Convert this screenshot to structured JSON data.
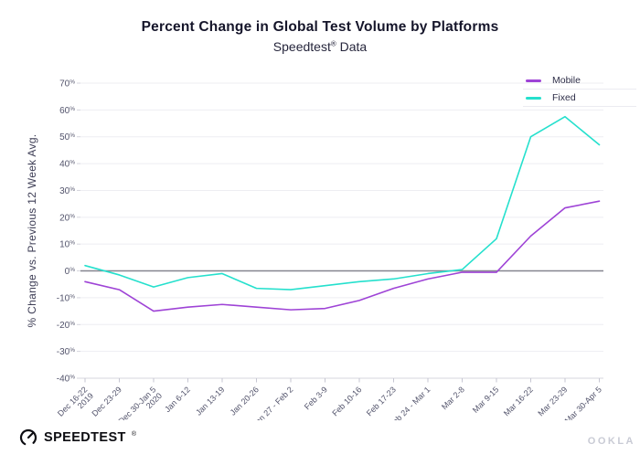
{
  "page": {
    "title": "Percent Change in Global Test Volume by Platforms",
    "subtitle_prefix": "Speedtest",
    "subtitle_mark": "®",
    "subtitle_suffix": " Data"
  },
  "legend": {
    "items": [
      {
        "label": "Mobile",
        "color": "#9e43d6"
      },
      {
        "label": "Fixed",
        "color": "#25e0cd"
      }
    ]
  },
  "footer": {
    "brand": "SPEEDTEST",
    "brand_mark": "®",
    "watermark": "OOKLA"
  },
  "chart_data": {
    "type": "line",
    "title": "Percent Change in Global Test Volume by Platforms",
    "subtitle": "Speedtest® Data",
    "xlabel": "",
    "ylabel": "% Change vs. Previous 12 Week Avg.",
    "ylim": [
      -40,
      70
    ],
    "ytick_step": 10,
    "ytick_suffix": "%",
    "grid": true,
    "legend_position": "top-right",
    "zero_line": true,
    "zero_line_color": "#85858f",
    "grid_color": "#eeeef2",
    "axis_color": "#d5d5dd",
    "tick_label_color": "#52536b",
    "categories": [
      "Dec 16-22\n2019",
      "Dec 23-29",
      "Dec 30-Jan 5\n2020",
      "Jan 6-12",
      "Jan 13-19",
      "Jan 20-26",
      "Jan 27 - Feb 2",
      "Feb 3-9",
      "Feb 10-16",
      "Feb 17-23",
      "Feb 24 - Mar 1",
      "Mar 2-8",
      "Mar 9-15",
      "Mar 16-22",
      "Mar 23-29",
      "Mar 30-Apr 5"
    ],
    "series": [
      {
        "name": "Mobile",
        "color": "#9e43d6",
        "values": [
          -4,
          -7,
          -15,
          -13.5,
          -12.5,
          -13.5,
          -14.5,
          -14,
          -11,
          -6.5,
          -3,
          -0.5,
          -0.5,
          13,
          23.5,
          26
        ]
      },
      {
        "name": "Fixed",
        "color": "#25e0cd",
        "values": [
          2,
          -1.5,
          -6,
          -2.5,
          -1,
          -6.5,
          -7,
          -5.5,
          -4,
          -3,
          -1,
          0.5,
          12,
          50,
          57.5,
          47
        ]
      }
    ]
  }
}
